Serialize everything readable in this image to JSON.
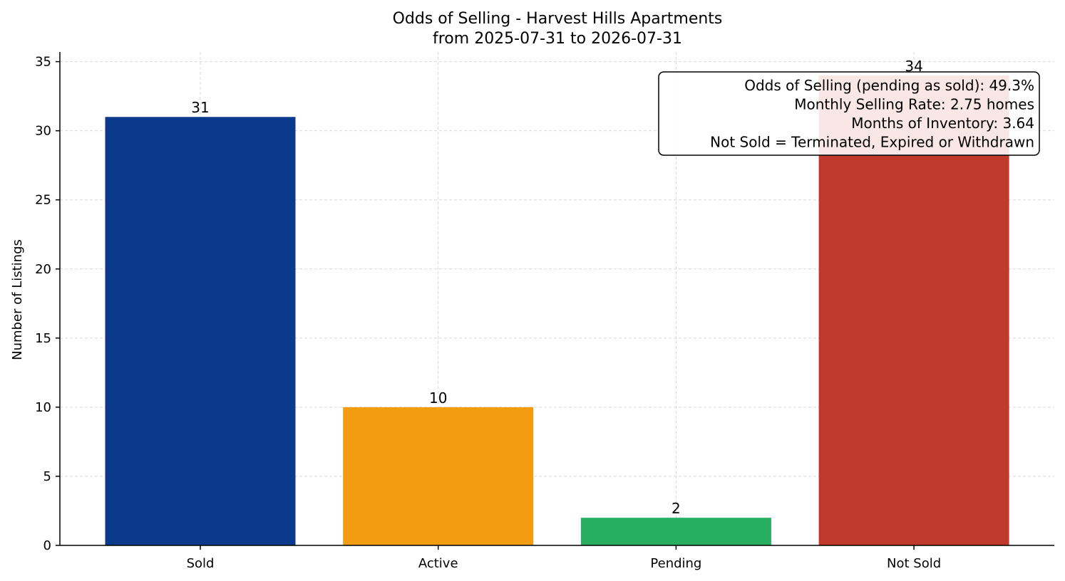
{
  "chart_data": {
    "type": "bar",
    "title": "Odds of Selling - Harvest Hills Apartments",
    "subtitle": "from 2025-07-31 to 2026-07-31",
    "xlabel": "",
    "ylabel": "Number of Listings",
    "categories": [
      "Sold",
      "Active",
      "Pending",
      "Not Sold"
    ],
    "values": [
      31,
      10,
      2,
      34
    ],
    "colors": [
      "#0b3a8c",
      "#f39c12",
      "#27ae60",
      "#c0392b"
    ],
    "ylim": [
      0,
      35.7
    ],
    "yticks": [
      0,
      5,
      10,
      15,
      20,
      25,
      30,
      35
    ],
    "grid": true,
    "annotation": {
      "position": "top-right",
      "lines": [
        "Odds of Selling (pending as sold): 49.3%",
        "Monthly Selling Rate: 2.75 homes",
        "Months of Inventory: 3.64",
        "Not Sold = Terminated, Expired or Withdrawn"
      ]
    }
  }
}
